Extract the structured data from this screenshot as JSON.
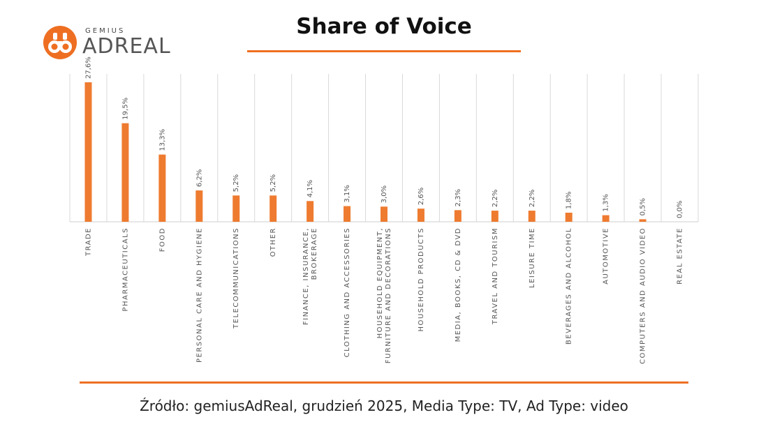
{
  "brand": {
    "top": "GEMIUS",
    "name": "ADREAL",
    "color": "#ee6f22"
  },
  "header": {
    "title": "Share of Voice"
  },
  "footer": {
    "source": "Źródło: gemiusAdReal, grudzień 2025, Media Type: TV, Ad Type: video"
  },
  "chart_data": {
    "type": "bar",
    "title": "Share of Voice",
    "xlabel": "",
    "ylabel": "",
    "grid": true,
    "bar_color": "#ee7b30",
    "ylim": [
      0,
      28
    ],
    "categories": [
      [
        "TRADE"
      ],
      [
        "PHARMACEUTICALS"
      ],
      [
        "FOOD"
      ],
      [
        "PERSONAL CARE AND HYGIENE"
      ],
      [
        "TELECOMMUNICATIONS"
      ],
      [
        "OTHER"
      ],
      [
        "FINANCE, INSURANCE,",
        "BROKERAGE"
      ],
      [
        "CLOTHING AND ACCESSORIES"
      ],
      [
        "HOUSEHOLD EQUIPMENT,",
        "FURNITURE AND DECORATIONS"
      ],
      [
        "HOUSEHOLD PRODUCTS"
      ],
      [
        "MEDIA, BOOKS, CD & DVD"
      ],
      [
        "TRAVEL AND TOURISM"
      ],
      [
        "LEISURE TIME"
      ],
      [
        "BEVERAGES AND ALCOHOL"
      ],
      [
        "AUTOMOTIVE"
      ],
      [
        "COMPUTERS AND AUDIO VIDEO"
      ],
      [
        "REAL ESTATE"
      ]
    ],
    "values": [
      27.6,
      19.5,
      13.3,
      6.2,
      5.2,
      5.2,
      4.1,
      3.1,
      3.0,
      2.6,
      2.3,
      2.2,
      2.2,
      1.8,
      1.3,
      0.5,
      0.0
    ],
    "value_labels": [
      "27,6%",
      "19,5%",
      "13,3%",
      "6,2%",
      "5,2%",
      "5,2%",
      "4,1%",
      "3,1%",
      "3,0%",
      "2,6%",
      "2,3%",
      "2,2%",
      "2,2%",
      "1,8%",
      "1,3%",
      "0,5%",
      "0,0%"
    ]
  }
}
